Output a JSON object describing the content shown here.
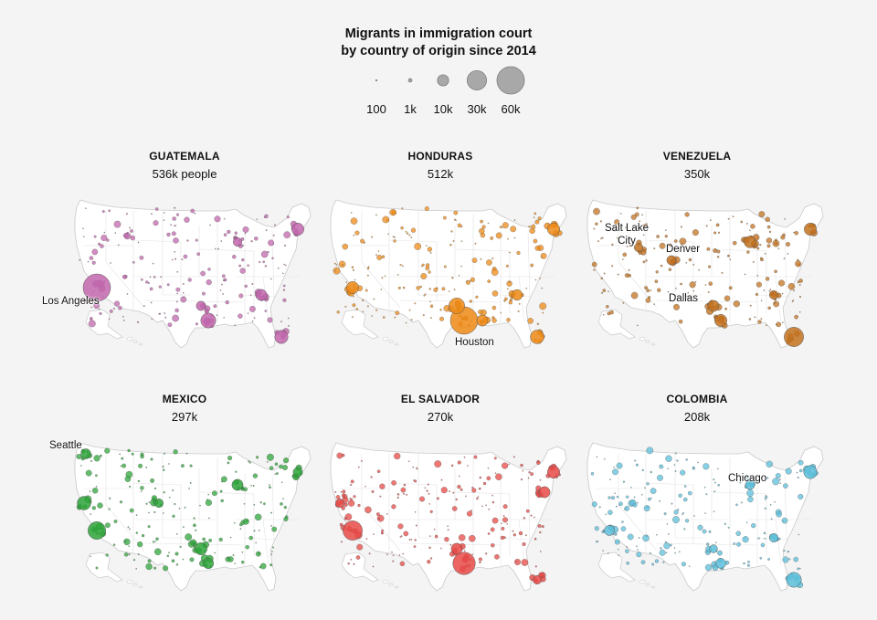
{
  "title_line1": "Migrants in immigration court",
  "title_line2": "by country of origin since 2014",
  "legend": {
    "sizes": [
      {
        "label": "100",
        "value": 100
      },
      {
        "label": "1k",
        "value": 1000
      },
      {
        "label": "10k",
        "value": 10000
      },
      {
        "label": "30k",
        "value": 30000
      },
      {
        "label": "60k",
        "value": 60000
      }
    ],
    "color": "#a8a8a8"
  },
  "panels": [
    {
      "country": "GUATEMALA",
      "count": "536k people",
      "color": "#c266ad",
      "labels": [
        {
          "text": "Los Angeles"
        }
      ],
      "hubs": [
        [
          "la",
          60000
        ],
        [
          "houston",
          18000
        ],
        [
          "florida_s",
          14000
        ],
        [
          "ny",
          12000
        ],
        [
          "atlanta",
          10000
        ],
        [
          "chicago",
          6000
        ],
        [
          "dallas",
          7000
        ]
      ]
    },
    {
      "country": "HONDURAS",
      "count": "512k",
      "color": "#ee8a15",
      "labels": [
        {
          "text": "Houston"
        }
      ],
      "hubs": [
        [
          "houston",
          60000
        ],
        [
          "dallas",
          20000
        ],
        [
          "la",
          12000
        ],
        [
          "florida_s",
          15000
        ],
        [
          "ny",
          12000
        ],
        [
          "atlanta",
          9000
        ],
        [
          "no",
          10000
        ]
      ]
    },
    {
      "country": "VENEZUELA",
      "count": "350k",
      "color": "#c2711f",
      "labels": [
        {
          "text": "Salt Lake City"
        },
        {
          "text": "Denver"
        },
        {
          "text": "Dallas"
        }
      ],
      "hubs": [
        [
          "florida_s",
          30000
        ],
        [
          "slc",
          6000
        ],
        [
          "denver",
          7000
        ],
        [
          "dallas",
          10000
        ],
        [
          "houston",
          12000
        ],
        [
          "chicago",
          11000
        ],
        [
          "ny",
          12000
        ],
        [
          "atlanta",
          6000
        ]
      ]
    },
    {
      "country": "MEXICO",
      "count": "297k",
      "color": "#2ea53a",
      "labels": [
        {
          "text": "Seattle"
        }
      ],
      "hubs": [
        [
          "la",
          25000
        ],
        [
          "seattle",
          8000
        ],
        [
          "sf",
          15000
        ],
        [
          "dallas",
          12000
        ],
        [
          "houston",
          9000
        ],
        [
          "chicago",
          10000
        ],
        [
          "ny",
          7000
        ],
        [
          "denver",
          6000
        ]
      ]
    },
    {
      "country": "EL SALVADOR",
      "count": "270k",
      "color": "#e84a46",
      "labels": [],
      "hubs": [
        [
          "la",
          30000
        ],
        [
          "houston",
          40000
        ],
        [
          "dallas",
          10000
        ],
        [
          "ny",
          12000
        ],
        [
          "dc",
          10000
        ],
        [
          "sf",
          6000
        ],
        [
          "florida_s",
          6000
        ]
      ]
    },
    {
      "country": "COLOMBIA",
      "count": "208k",
      "color": "#5cbfdb",
      "labels": [
        {
          "text": "Chicago"
        }
      ],
      "hubs": [
        [
          "florida_s",
          18000
        ],
        [
          "ny",
          14000
        ],
        [
          "la",
          8000
        ],
        [
          "chicago",
          7000
        ],
        [
          "houston",
          8000
        ],
        [
          "dallas",
          5000
        ],
        [
          "atlanta",
          6000
        ]
      ]
    }
  ]
}
